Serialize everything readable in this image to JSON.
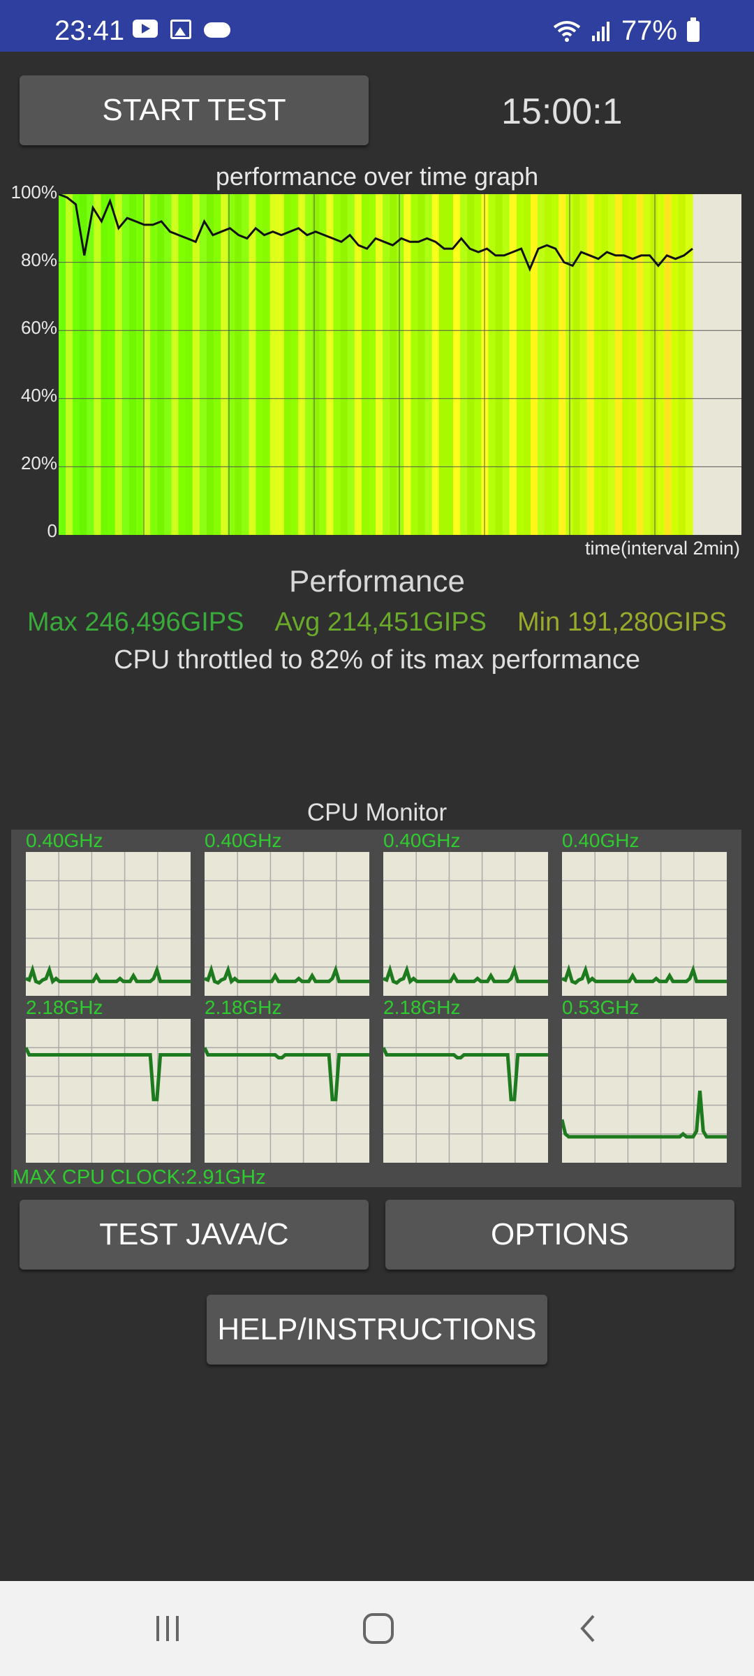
{
  "status_bar": {
    "time": "23:41",
    "battery": "77%",
    "left_icons": [
      "youtube-icon",
      "gallery-icon",
      "cloud-icon"
    ],
    "right_icons": [
      "wifi-icon",
      "signal-icon",
      "battery-icon"
    ]
  },
  "controls": {
    "start_test_label": "START TEST",
    "timer": "15:00:1",
    "test_java_label": "TEST JAVA/C",
    "options_label": "OPTIONS",
    "help_label": "HELP/INSTRUCTIONS"
  },
  "graph": {
    "title": "performance over time graph",
    "x_label": "time(interval 2min)",
    "y_ticks": [
      "100%",
      "80%",
      "60%",
      "40%",
      "20%",
      "0"
    ]
  },
  "chart_data": {
    "type": "line",
    "title": "performance over time graph",
    "xlabel": "time(interval 2min)",
    "ylabel": "",
    "ylim": [
      0,
      100
    ],
    "grid": true,
    "x": [
      0,
      1,
      2,
      3,
      4,
      5,
      6,
      7,
      8,
      9,
      10,
      11,
      12,
      13,
      14,
      15,
      16,
      17,
      18,
      19,
      20,
      21,
      22,
      23,
      24,
      25,
      26,
      27,
      28,
      29,
      30,
      31,
      32,
      33,
      34,
      35,
      36,
      37,
      38,
      39,
      40,
      41,
      42,
      43,
      44,
      45,
      46,
      47,
      48,
      49,
      50,
      51,
      52,
      53,
      54,
      55,
      56,
      57,
      58,
      59,
      60,
      61,
      62,
      63,
      64,
      65,
      66,
      67,
      68,
      69,
      70,
      71,
      72,
      73,
      74
    ],
    "series": [
      {
        "values": [
          100,
          99,
          97,
          82,
          96,
          92,
          98,
          90,
          93,
          92,
          91,
          91,
          92,
          89,
          88,
          87,
          86,
          92,
          88,
          89,
          90,
          88,
          87,
          90,
          88,
          89,
          88,
          89,
          90,
          88,
          89,
          88,
          87,
          86,
          88,
          85,
          84,
          87,
          86,
          85,
          87,
          86,
          86,
          87,
          86,
          84,
          84,
          87,
          84,
          83,
          84,
          82,
          82,
          83,
          84,
          78,
          84,
          85,
          84,
          80,
          79,
          83,
          82,
          81,
          83,
          82,
          82,
          81,
          82,
          82,
          79,
          82,
          81,
          82,
          84
        ]
      }
    ]
  },
  "performance": {
    "title": "Performance",
    "max": "Max 246,496GIPS",
    "avg": "Avg 214,451GIPS",
    "min": "Min 191,280GIPS",
    "throttle_text": "CPU throttled to 82% of its max performance",
    "colors": {
      "max": "#3aaa3a",
      "avg": "#6aaa2a",
      "min": "#9aaa2a"
    }
  },
  "cpu_monitor": {
    "title": "CPU Monitor",
    "max_clock": "MAX CPU CLOCK:2.91GHz",
    "cores": [
      {
        "freq": "0.40GHz",
        "trace": [
          88,
          89,
          82,
          90,
          91,
          89,
          88,
          82,
          90,
          88,
          90,
          90,
          90,
          90,
          90,
          90,
          90,
          90,
          90,
          90,
          90,
          86,
          90,
          90,
          90,
          90,
          90,
          90,
          88,
          90,
          90,
          90,
          86,
          90,
          90,
          90,
          90,
          90,
          88,
          82,
          90,
          90,
          90,
          90,
          90,
          90,
          90,
          90,
          90,
          90
        ]
      },
      {
        "freq": "0.40GHz",
        "trace": [
          88,
          89,
          82,
          90,
          91,
          89,
          88,
          82,
          90,
          88,
          90,
          90,
          90,
          90,
          90,
          90,
          90,
          90,
          90,
          90,
          90,
          86,
          90,
          90,
          90,
          90,
          90,
          90,
          88,
          90,
          90,
          90,
          86,
          90,
          90,
          90,
          90,
          90,
          88,
          82,
          90,
          90,
          90,
          90,
          90,
          90,
          90,
          90,
          90,
          90
        ]
      },
      {
        "freq": "0.40GHz",
        "trace": [
          88,
          89,
          82,
          90,
          91,
          89,
          88,
          82,
          90,
          88,
          90,
          90,
          90,
          90,
          90,
          90,
          90,
          90,
          90,
          90,
          90,
          86,
          90,
          90,
          90,
          90,
          90,
          90,
          88,
          90,
          90,
          90,
          86,
          90,
          90,
          90,
          90,
          90,
          88,
          82,
          90,
          90,
          90,
          90,
          90,
          90,
          90,
          90,
          90,
          90
        ]
      },
      {
        "freq": "0.40GHz",
        "trace": [
          88,
          89,
          82,
          90,
          91,
          89,
          88,
          82,
          90,
          88,
          90,
          90,
          90,
          90,
          90,
          90,
          90,
          90,
          90,
          90,
          90,
          86,
          90,
          90,
          90,
          90,
          90,
          90,
          88,
          90,
          90,
          90,
          86,
          90,
          90,
          90,
          90,
          90,
          88,
          82,
          90,
          90,
          90,
          90,
          90,
          90,
          90,
          90,
          90,
          90
        ]
      },
      {
        "freq": "2.18GHz",
        "trace": [
          20,
          25,
          25,
          25,
          25,
          25,
          25,
          25,
          25,
          25,
          25,
          25,
          25,
          25,
          25,
          25,
          25,
          25,
          25,
          25,
          25,
          25,
          25,
          25,
          25,
          25,
          25,
          25,
          25,
          25,
          25,
          25,
          25,
          25,
          25,
          25,
          25,
          25,
          56,
          56,
          25,
          25,
          25,
          25,
          25,
          25,
          25,
          25,
          25,
          25
        ]
      },
      {
        "freq": "2.18GHz",
        "trace": [
          20,
          25,
          25,
          25,
          25,
          25,
          25,
          25,
          25,
          25,
          25,
          25,
          25,
          25,
          25,
          25,
          25,
          25,
          25,
          25,
          25,
          25,
          27,
          27,
          25,
          25,
          25,
          25,
          25,
          25,
          25,
          25,
          25,
          25,
          25,
          25,
          25,
          25,
          56,
          56,
          25,
          25,
          25,
          25,
          25,
          25,
          25,
          25,
          25,
          25
        ]
      },
      {
        "freq": "2.18GHz",
        "trace": [
          20,
          25,
          25,
          25,
          25,
          25,
          25,
          25,
          25,
          25,
          25,
          25,
          25,
          25,
          25,
          25,
          25,
          25,
          25,
          25,
          25,
          25,
          27,
          27,
          25,
          25,
          25,
          25,
          25,
          25,
          25,
          25,
          25,
          25,
          25,
          25,
          25,
          25,
          56,
          56,
          25,
          25,
          25,
          25,
          25,
          25,
          25,
          25,
          25,
          25
        ]
      },
      {
        "freq": "0.53GHz",
        "trace": [
          70,
          80,
          82,
          82,
          82,
          82,
          82,
          82,
          82,
          82,
          82,
          82,
          82,
          82,
          82,
          82,
          82,
          82,
          82,
          82,
          82,
          82,
          82,
          82,
          82,
          82,
          82,
          82,
          82,
          82,
          82,
          82,
          82,
          82,
          82,
          82,
          80,
          82,
          82,
          82,
          78,
          50,
          78,
          82,
          82,
          82,
          82,
          82,
          82,
          82
        ]
      }
    ]
  },
  "nav_bar": {
    "icons": [
      "recent-apps-icon",
      "home-icon",
      "back-icon"
    ]
  }
}
